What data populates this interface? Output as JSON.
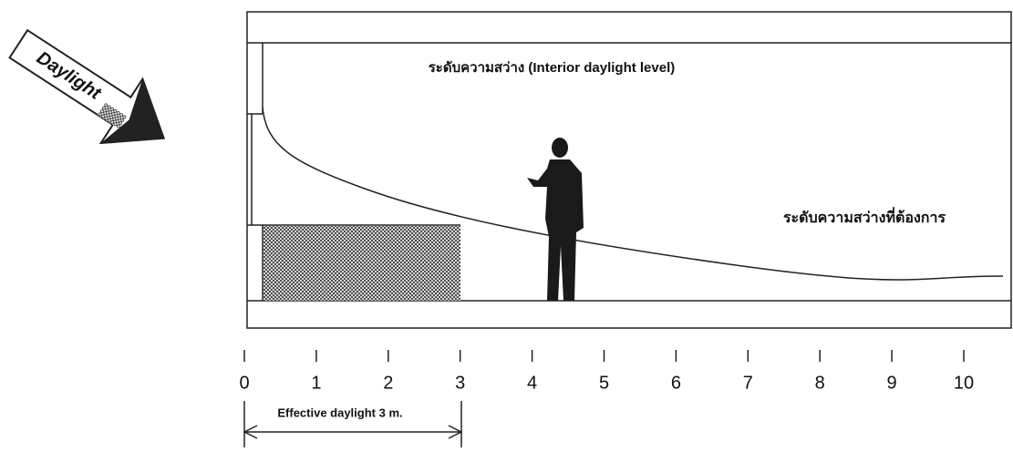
{
  "arrow_label": "Daylight",
  "interior_label": "ระดับความสว่าง (Interior daylight level)",
  "required_label": "ระดับความสว่างที่ต้องการ",
  "scale": {
    "ticks": [
      0,
      1,
      2,
      3,
      4,
      5,
      6,
      7,
      8,
      9,
      10
    ]
  },
  "effective_label": "Effective daylight 3 m."
}
